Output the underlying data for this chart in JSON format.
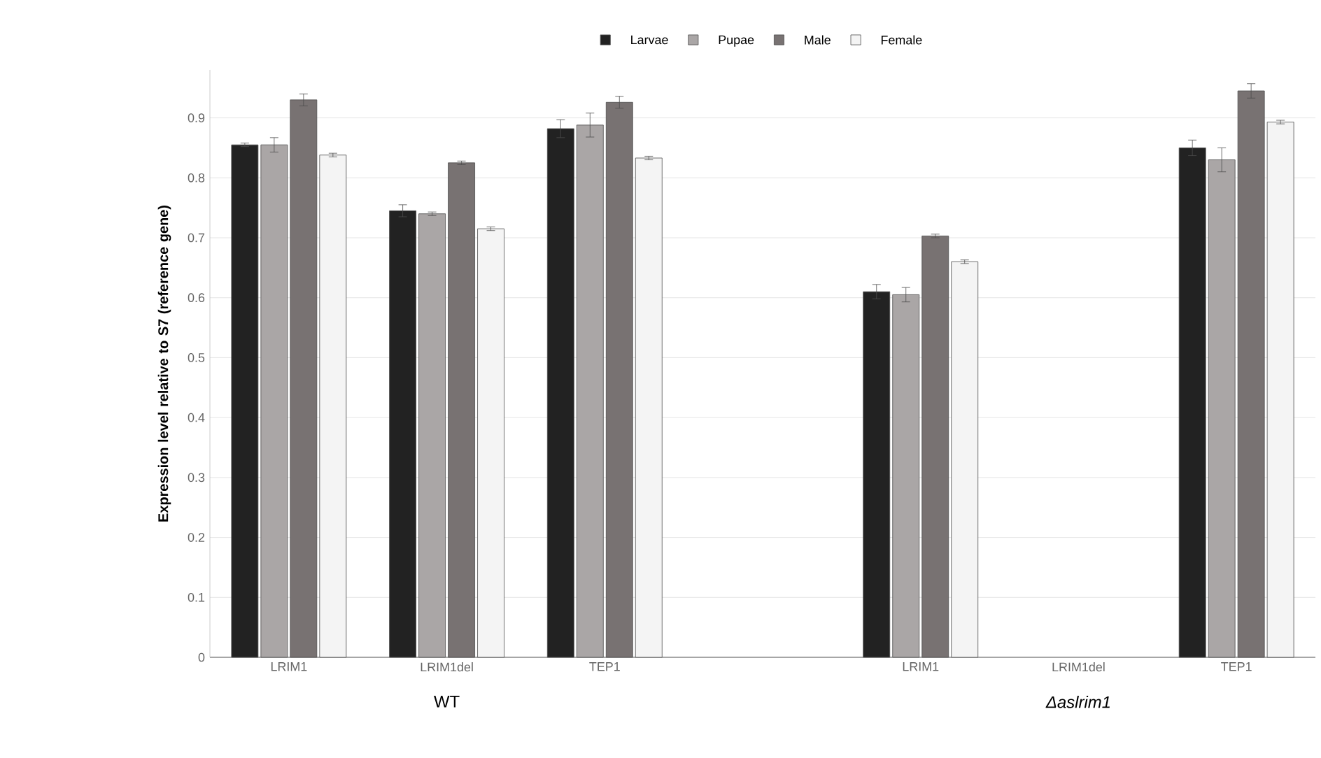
{
  "chart_data": {
    "type": "bar",
    "categories": [
      "LRIM1",
      "LRIM1del",
      "TEP1",
      null,
      "LRIM1",
      "LRIM1del",
      "TEP1"
    ],
    "ylabel": "Expression level relative to S7 (reference gene)",
    "annotations": [
      "WT",
      "Δaslrim1"
    ],
    "series": [
      {
        "name": "Larvae",
        "color": "#222222",
        "values": [
          0.855,
          0.745,
          0.882,
          null,
          0.61,
          null,
          0.85
        ],
        "errors": [
          0.003,
          0.01,
          0.015,
          null,
          0.012,
          null,
          0.013
        ]
      },
      {
        "name": "Pupae",
        "color": "#aaa6a6",
        "values": [
          0.855,
          0.74,
          0.888,
          null,
          0.605,
          null,
          0.83
        ],
        "errors": [
          0.012,
          0.003,
          0.02,
          null,
          0.012,
          null,
          0.02
        ]
      },
      {
        "name": "Male",
        "color": "#787272",
        "values": [
          0.93,
          0.825,
          0.926,
          null,
          0.703,
          null,
          0.945
        ],
        "errors": [
          0.01,
          0.003,
          0.01,
          null,
          0.003,
          null,
          0.012
        ]
      },
      {
        "name": "Female",
        "color": "#f4f4f4",
        "values": [
          0.838,
          0.715,
          0.833,
          null,
          0.66,
          null,
          0.893
        ],
        "errors": [
          0.003,
          0.003,
          0.003,
          null,
          0.003,
          null,
          0.003
        ]
      }
    ],
    "ylim": [
      0,
      0.98
    ],
    "yticks": [
      0,
      0.1,
      0.2,
      0.3,
      0.4,
      0.5,
      0.6,
      0.7,
      0.8,
      0.9
    ],
    "grid": "y",
    "legend": "top"
  }
}
